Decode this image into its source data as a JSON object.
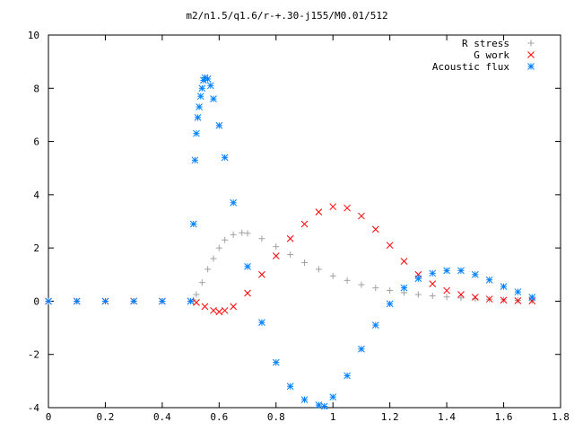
{
  "chart_data": {
    "type": "scatter",
    "title": "m2/n1.5/q1.6/r-+.30-j155/M0.01/512",
    "xlabel": "",
    "ylabel": "",
    "xlim": [
      0,
      1.8
    ],
    "ylim": [
      -4,
      10
    ],
    "x_ticks": [
      "0",
      "0.2",
      "0.4",
      "0.6",
      "0.8",
      "1",
      "1.2",
      "1.4",
      "1.6",
      "1.8"
    ],
    "y_ticks": [
      "-4",
      "-2",
      "0",
      "2",
      "4",
      "6",
      "8",
      "10"
    ],
    "legend_position": "top-right",
    "grid": false,
    "series": [
      {
        "name": "R stress",
        "marker": "+",
        "color": "#a0a0a0",
        "points": [
          [
            0,
            0
          ],
          [
            0.1,
            0
          ],
          [
            0.2,
            0
          ],
          [
            0.3,
            0
          ],
          [
            0.4,
            0
          ],
          [
            0.5,
            0
          ],
          [
            0.51,
            0.05
          ],
          [
            0.52,
            0.25
          ],
          [
            0.54,
            0.7
          ],
          [
            0.56,
            1.2
          ],
          [
            0.58,
            1.6
          ],
          [
            0.6,
            2.0
          ],
          [
            0.62,
            2.3
          ],
          [
            0.65,
            2.5
          ],
          [
            0.68,
            2.57
          ],
          [
            0.7,
            2.55
          ],
          [
            0.75,
            2.35
          ],
          [
            0.8,
            2.05
          ],
          [
            0.85,
            1.75
          ],
          [
            0.9,
            1.45
          ],
          [
            0.95,
            1.2
          ],
          [
            1.0,
            0.95
          ],
          [
            1.05,
            0.78
          ],
          [
            1.1,
            0.62
          ],
          [
            1.15,
            0.5
          ],
          [
            1.2,
            0.4
          ],
          [
            1.25,
            0.32
          ],
          [
            1.3,
            0.25
          ],
          [
            1.35,
            0.2
          ],
          [
            1.4,
            0.16
          ],
          [
            1.45,
            0.12
          ],
          [
            1.5,
            0.09
          ],
          [
            1.55,
            0.07
          ],
          [
            1.6,
            0.05
          ],
          [
            1.65,
            0.03
          ],
          [
            1.7,
            0.02
          ]
        ]
      },
      {
        "name": "G work",
        "marker": "x",
        "color": "#ff0000",
        "points": [
          [
            0,
            0
          ],
          [
            0.1,
            0
          ],
          [
            0.2,
            0
          ],
          [
            0.3,
            0
          ],
          [
            0.4,
            0
          ],
          [
            0.5,
            0
          ],
          [
            0.52,
            -0.05
          ],
          [
            0.55,
            -0.2
          ],
          [
            0.58,
            -0.35
          ],
          [
            0.6,
            -0.4
          ],
          [
            0.62,
            -0.35
          ],
          [
            0.65,
            -0.2
          ],
          [
            0.7,
            0.3
          ],
          [
            0.75,
            1.0
          ],
          [
            0.8,
            1.7
          ],
          [
            0.85,
            2.35
          ],
          [
            0.9,
            2.9
          ],
          [
            0.95,
            3.35
          ],
          [
            1.0,
            3.55
          ],
          [
            1.05,
            3.5
          ],
          [
            1.1,
            3.2
          ],
          [
            1.15,
            2.7
          ],
          [
            1.2,
            2.1
          ],
          [
            1.25,
            1.5
          ],
          [
            1.3,
            1.0
          ],
          [
            1.35,
            0.65
          ],
          [
            1.4,
            0.4
          ],
          [
            1.45,
            0.25
          ],
          [
            1.5,
            0.15
          ],
          [
            1.55,
            0.08
          ],
          [
            1.6,
            0.04
          ],
          [
            1.65,
            0.02
          ],
          [
            1.7,
            0.01
          ]
        ]
      },
      {
        "name": "Acoustic flux",
        "marker": "*",
        "color": "#0080ff",
        "points": [
          [
            0,
            0
          ],
          [
            0.1,
            0
          ],
          [
            0.2,
            0
          ],
          [
            0.3,
            0
          ],
          [
            0.4,
            0
          ],
          [
            0.5,
            0
          ],
          [
            0.51,
            2.9
          ],
          [
            0.515,
            5.3
          ],
          [
            0.52,
            6.3
          ],
          [
            0.525,
            6.9
          ],
          [
            0.53,
            7.3
          ],
          [
            0.535,
            7.7
          ],
          [
            0.54,
            8.0
          ],
          [
            0.545,
            8.3
          ],
          [
            0.55,
            8.4
          ],
          [
            0.56,
            8.35
          ],
          [
            0.57,
            8.1
          ],
          [
            0.58,
            7.6
          ],
          [
            0.6,
            6.6
          ],
          [
            0.62,
            5.4
          ],
          [
            0.65,
            3.7
          ],
          [
            0.7,
            1.3
          ],
          [
            0.75,
            -0.8
          ],
          [
            0.8,
            -2.3
          ],
          [
            0.85,
            -3.2
          ],
          [
            0.9,
            -3.7
          ],
          [
            0.95,
            -3.9
          ],
          [
            0.97,
            -3.95
          ],
          [
            1.0,
            -3.6
          ],
          [
            1.05,
            -2.8
          ],
          [
            1.1,
            -1.8
          ],
          [
            1.15,
            -0.9
          ],
          [
            1.2,
            -0.1
          ],
          [
            1.25,
            0.5
          ],
          [
            1.3,
            0.85
          ],
          [
            1.35,
            1.05
          ],
          [
            1.4,
            1.15
          ],
          [
            1.45,
            1.15
          ],
          [
            1.5,
            1.0
          ],
          [
            1.55,
            0.8
          ],
          [
            1.6,
            0.55
          ],
          [
            1.65,
            0.35
          ],
          [
            1.7,
            0.15
          ]
        ]
      }
    ]
  }
}
